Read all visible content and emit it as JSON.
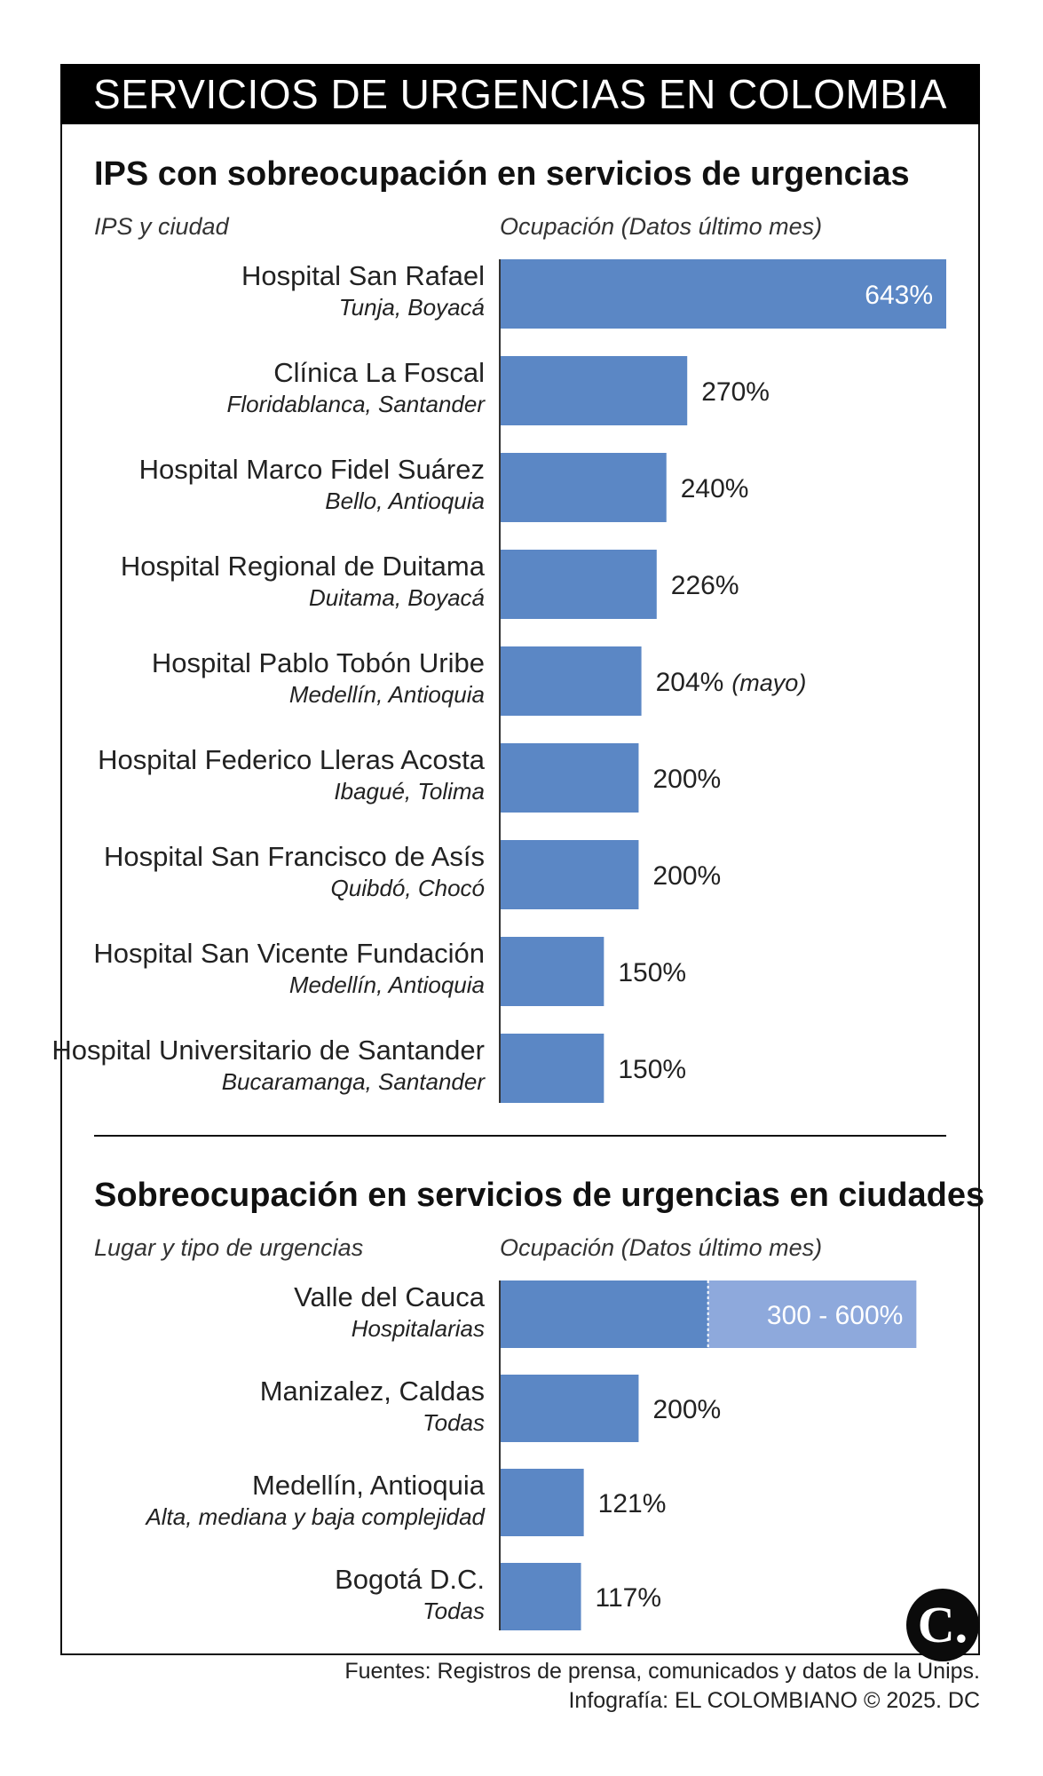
{
  "banner_title": "SERVICIOS DE URGENCIAS EN COLOMBIA",
  "colors": {
    "bar": "#5b87c5",
    "bar_light": "#8ea9dc",
    "banner": "#000000"
  },
  "chart_data": [
    {
      "type": "bar",
      "orientation": "horizontal",
      "title": "IPS con sobreocupación en servicios de urgencias",
      "label_header": "IPS y ciudad",
      "value_header": "Ocupación (Datos último mes)",
      "unit": "%",
      "grid": false,
      "categories": [
        "Hospital San Rafael",
        "Clínica La Foscal",
        "Hospital Marco Fidel Suárez",
        "Hospital Regional de Duitama",
        "Hospital Pablo Tobón Uribe",
        "Hospital Federico Lleras Acosta",
        "Hospital San Francisco de Asís",
        "Hospital San Vicente Fundación",
        "Hospital Universitario de Santander"
      ],
      "subtitles": [
        "Tunja, Boyacá",
        "Floridablanca, Santander",
        "Bello, Antioquia",
        "Duitama, Boyacá",
        "Medellín, Antioquia",
        "Ibagué, Tolima",
        "Quibdó, Chocó",
        "Medellín, Antioquia",
        "Bucaramanga, Santander"
      ],
      "values": [
        643,
        270,
        240,
        226,
        204,
        200,
        200,
        150,
        150
      ],
      "value_labels": [
        "643%",
        "270%",
        "240%",
        "226%",
        "204%",
        "200%",
        "200%",
        "150%",
        "150%"
      ],
      "notes": [
        "",
        "",
        "",
        "",
        "(mayo)",
        "",
        "",
        "",
        ""
      ],
      "xlim": [
        0,
        643
      ]
    },
    {
      "type": "bar",
      "orientation": "horizontal",
      "title": "Sobreocupación en servicios de urgencias en ciudades",
      "label_header": "Lugar y tipo de urgencias",
      "value_header": "Ocupación (Datos último mes)",
      "unit": "%",
      "grid": false,
      "categories": [
        "Valle del Cauca",
        "Manizalez, Caldas",
        "Medellín, Antioquia",
        "Bogotá D.C."
      ],
      "subtitles": [
        "Hospitalarias",
        "Todas",
        "Alta, mediana y baja complejidad",
        "Todas"
      ],
      "values": [
        300,
        200,
        121,
        117
      ],
      "range_high": [
        600,
        null,
        null,
        null
      ],
      "value_labels": [
        "300 - 600%",
        "200%",
        "121%",
        "117%"
      ],
      "xlim": [
        0,
        643
      ]
    }
  ],
  "footer": {
    "sources": "Fuentes: Registros de prensa, comunicados y datos de la Unips.",
    "credit": "Infografía: EL COLOMBIANO © 2025. DC"
  },
  "logo_letter": "C."
}
